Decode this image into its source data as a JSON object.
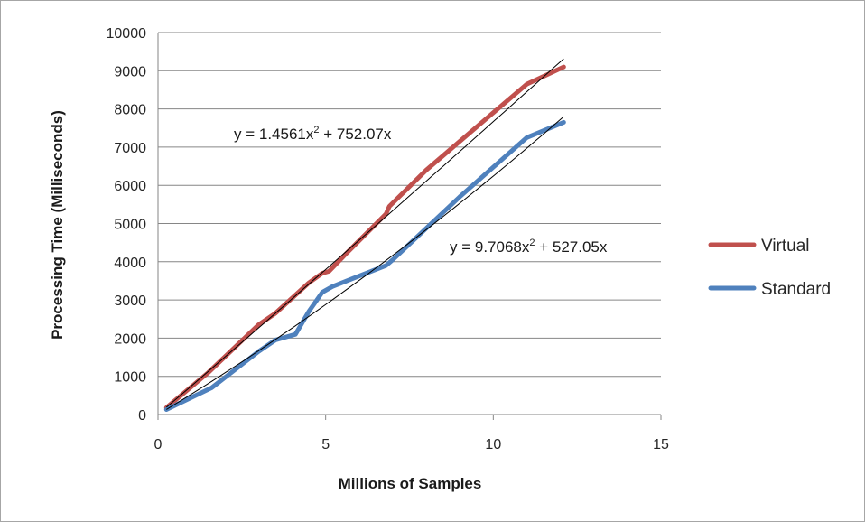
{
  "chart_data": {
    "type": "line",
    "xlabel": "Millions of Samples",
    "ylabel": "Processing Time (Milliseconds)",
    "xlim": [
      0,
      15
    ],
    "ylim": [
      0,
      10000
    ],
    "x_ticks": [
      "0",
      "5",
      "10",
      "15"
    ],
    "y_ticks": [
      "0",
      "1000",
      "2000",
      "3000",
      "4000",
      "5000",
      "6000",
      "7000",
      "8000",
      "9000",
      "10000"
    ],
    "grid": "horizontal",
    "legend_position": "right",
    "series": [
      {
        "name": "Virtual",
        "color": "#c0504d",
        "x": [
          0.25,
          1.5,
          3,
          3.5,
          4.5,
          4.9,
          5.1,
          5.6,
          6.8,
          6.9,
          8,
          10,
          11,
          12.1
        ],
        "y": [
          180,
          1100,
          2350,
          2650,
          3450,
          3700,
          3750,
          4200,
          5250,
          5450,
          6400,
          7900,
          8650,
          9100
        ]
      },
      {
        "name": "Standard",
        "color": "#4f81bd",
        "x": [
          0.25,
          1.6,
          3,
          3.5,
          4.1,
          4.5,
          4.9,
          5.2,
          6.8,
          7,
          9,
          11,
          12.1
        ],
        "y": [
          130,
          700,
          1650,
          1950,
          2100,
          2700,
          3200,
          3350,
          3900,
          4050,
          5700,
          7250,
          7650
        ]
      }
    ],
    "trendlines": [
      {
        "series": "Virtual",
        "equation_prefix": "y = 1.4561x",
        "equation_sup": "2",
        "equation_suffix": " + 752.07x",
        "a": 1.4561,
        "b": 752.07,
        "x_range": [
          0.25,
          12.1
        ],
        "color": "#000000"
      },
      {
        "series": "Standard",
        "equation_prefix": "y = 9.7068x",
        "equation_sup": "2",
        "equation_suffix": " + 527.05x",
        "a": 9.7068,
        "b": 527.05,
        "x_range": [
          0.25,
          12.1
        ],
        "color": "#000000"
      }
    ]
  }
}
